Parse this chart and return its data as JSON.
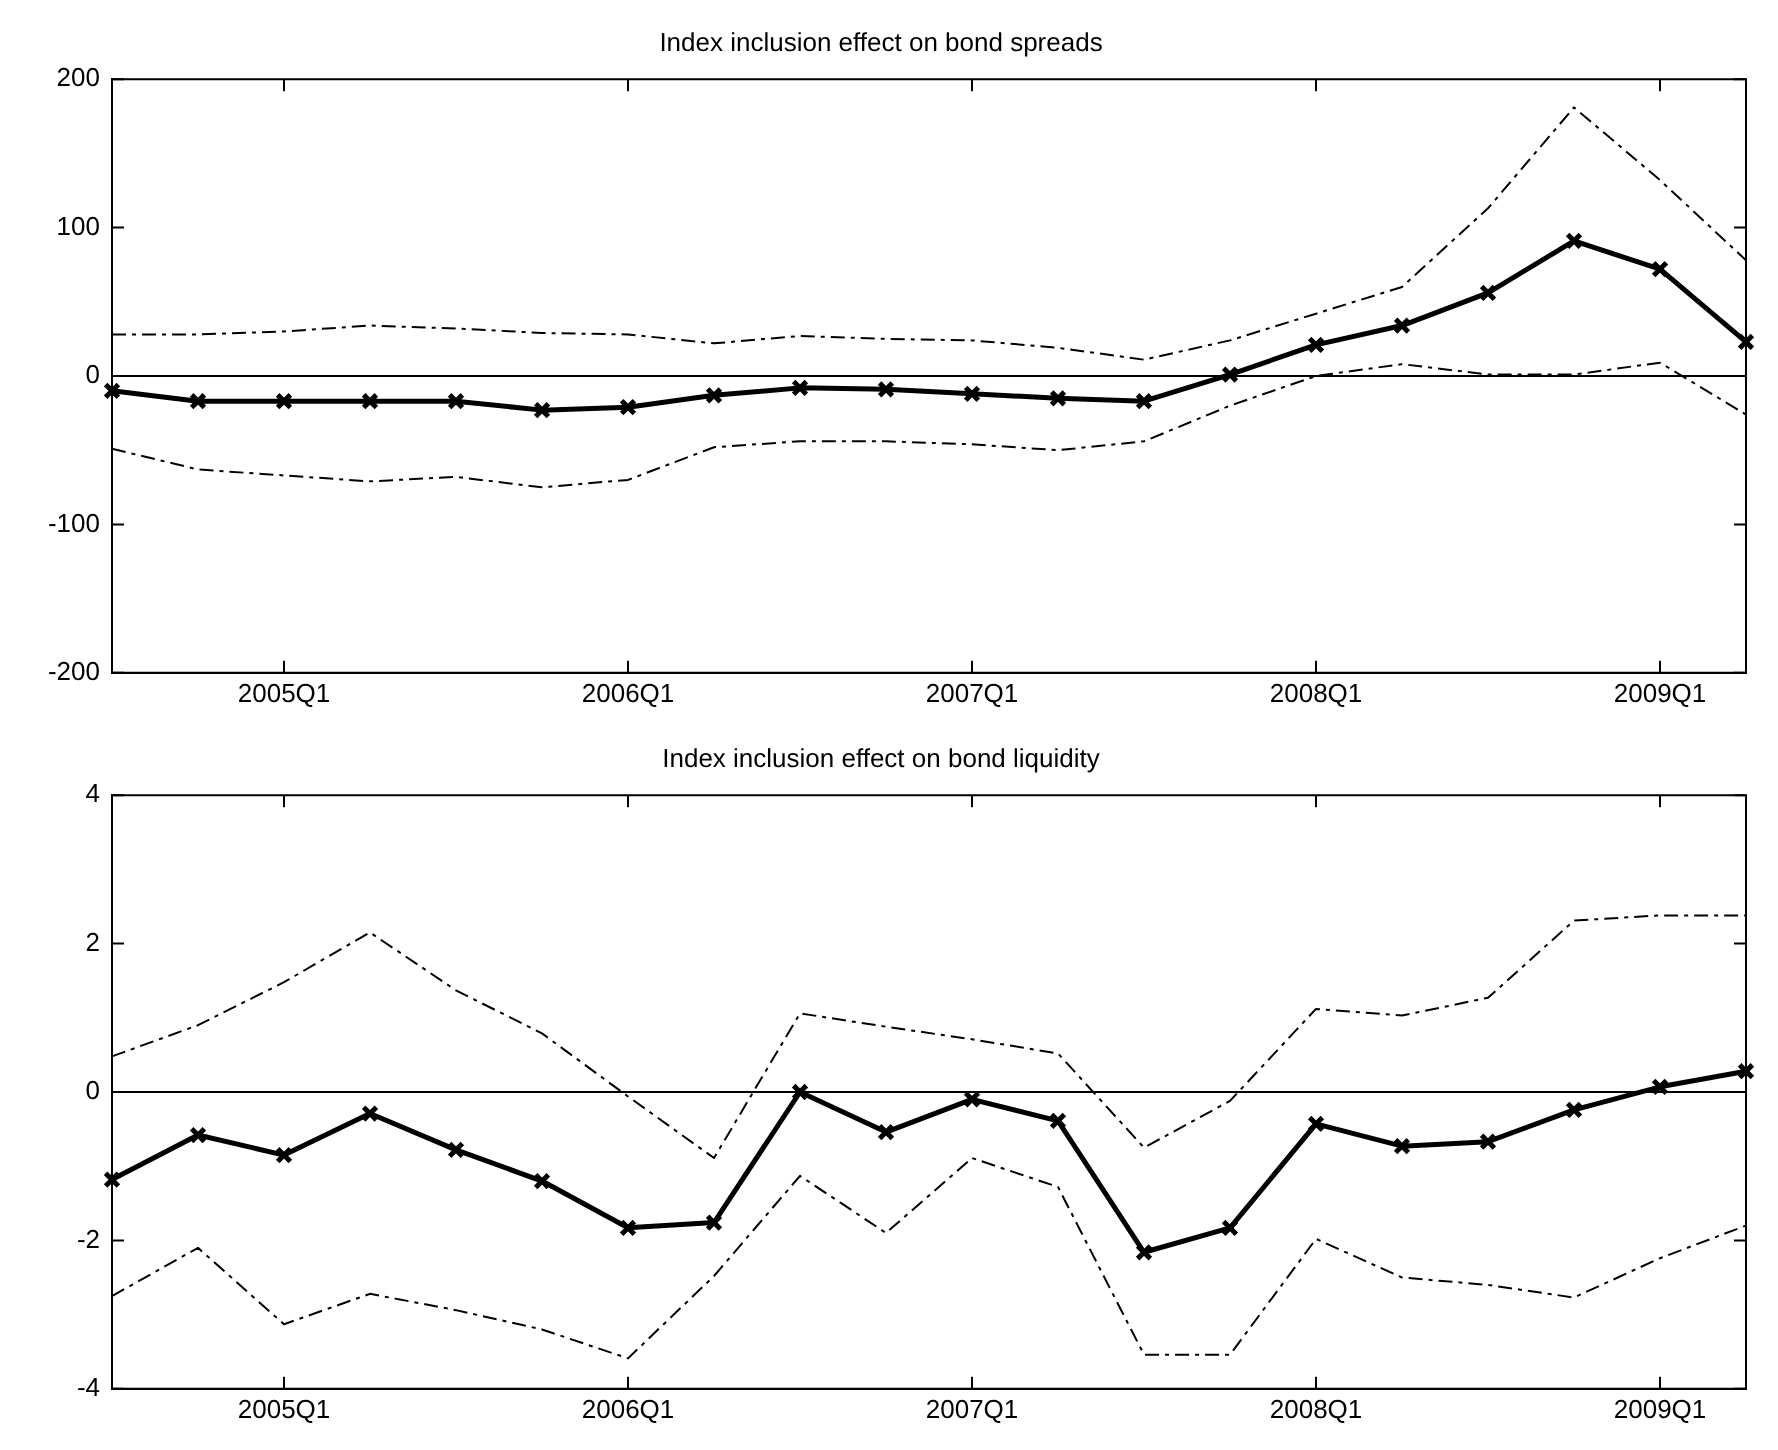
{
  "chart_data": [
    {
      "type": "line",
      "title": "Index inclusion effect on bond spreads",
      "categories": [
        null,
        null,
        "2005Q1",
        null,
        null,
        null,
        "2006Q1",
        null,
        null,
        null,
        "2007Q1",
        null,
        null,
        null,
        "2008Q1",
        null,
        null,
        null,
        "2009Q1",
        null
      ],
      "series": [
        {
          "color": "#000000",
          "marker": "cross",
          "line_style": "solid",
          "values": [
            -10,
            -17,
            -17,
            -17,
            -17,
            -23,
            -21,
            -13,
            -8,
            -9,
            -12,
            -15,
            -17,
            1,
            21,
            34,
            56,
            91,
            72,
            23
          ]
        },
        {
          "color": "#000000",
          "marker": "none",
          "line_style": "dashed",
          "values": [
            28,
            28,
            30,
            34,
            32,
            29,
            28,
            22,
            27,
            25,
            24,
            19,
            11,
            24,
            42,
            60,
            113,
            181,
            132,
            78
          ]
        },
        {
          "color": "#000000",
          "marker": "none",
          "line_style": "dashed",
          "values": [
            -49,
            -63,
            -67,
            -71,
            -68,
            -75,
            -70,
            -48,
            -44,
            -44,
            -46,
            -50,
            -44,
            -20,
            0,
            8,
            1,
            1,
            9,
            -26
          ]
        }
      ],
      "ylim": [
        -200,
        200
      ],
      "yticks": [
        -200,
        -100,
        0,
        100,
        200
      ],
      "ref_lines": [
        {
          "axis": "y",
          "value": 0,
          "color": "#000000",
          "line_style": "solid"
        }
      ],
      "grid": false,
      "legend": false
    },
    {
      "type": "line",
      "title": "Index inclusion effect on bond liquidity",
      "categories": [
        null,
        null,
        "2005Q1",
        null,
        null,
        null,
        "2006Q1",
        null,
        null,
        null,
        "2007Q1",
        null,
        null,
        null,
        "2008Q1",
        null,
        null,
        null,
        "2009Q1",
        null
      ],
      "series": [
        {
          "color": "#000000",
          "marker": "cross",
          "line_style": "solid",
          "values": [
            -1.18,
            -0.58,
            -0.85,
            -0.29,
            -0.78,
            -1.2,
            -1.83,
            -1.76,
            0,
            -0.54,
            -0.1,
            -0.39,
            -2.16,
            -1.83,
            -0.43,
            -0.73,
            -0.67,
            -0.24,
            0.07,
            0.28
          ]
        },
        {
          "color": "#000000",
          "marker": "none",
          "line_style": "dashed",
          "values": [
            0.48,
            0.9,
            1.48,
            2.15,
            1.37,
            0.79,
            -0.06,
            -0.89,
            1.06,
            0.88,
            0.71,
            0.52,
            -0.75,
            -0.12,
            1.12,
            1.03,
            1.27,
            2.31,
            2.38,
            2.38
          ]
        },
        {
          "color": "#000000",
          "marker": "none",
          "line_style": "dashed",
          "values": [
            -2.75,
            -2.1,
            -3.13,
            -2.72,
            -2.94,
            -3.2,
            -3.59,
            -2.48,
            -1.13,
            -1.9,
            -0.89,
            -1.28,
            -3.54,
            -3.54,
            -1.98,
            -2.5,
            -2.6,
            -2.77,
            -2.24,
            -1.8
          ]
        }
      ],
      "ylim": [
        -4,
        4
      ],
      "yticks": [
        -4,
        -2,
        0,
        2,
        4
      ],
      "ref_lines": [
        {
          "axis": "y",
          "value": 0,
          "color": "#000000",
          "line_style": "solid"
        }
      ],
      "grid": false,
      "legend": false
    }
  ]
}
